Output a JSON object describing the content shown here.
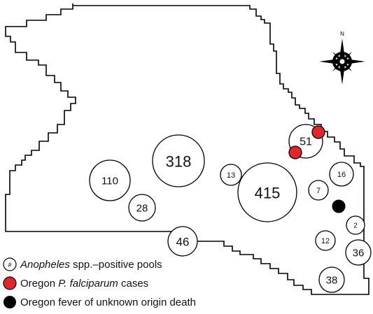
{
  "map": {
    "region_outline": "district-boundary",
    "compass": {
      "icon": "compass-rose-icon",
      "north_label": "N"
    },
    "pools": [
      {
        "id": "pool-318",
        "count": "318"
      },
      {
        "id": "pool-110",
        "count": "110"
      },
      {
        "id": "pool-28",
        "count": "28"
      },
      {
        "id": "pool-13",
        "count": "13"
      },
      {
        "id": "pool-415",
        "count": "415"
      },
      {
        "id": "pool-51",
        "count": "51"
      },
      {
        "id": "pool-16",
        "count": "16"
      },
      {
        "id": "pool-7",
        "count": "7"
      },
      {
        "id": "pool-46",
        "count": "46"
      },
      {
        "id": "pool-2",
        "count": "2"
      },
      {
        "id": "pool-12",
        "count": "12"
      },
      {
        "id": "pool-36",
        "count": "36"
      },
      {
        "id": "pool-38",
        "count": "38"
      }
    ],
    "case_markers": [
      {
        "type": "falciparum-case",
        "color": "#e0262c"
      },
      {
        "type": "falciparum-case",
        "color": "#e0262c"
      },
      {
        "type": "fever-death",
        "color": "#000000"
      }
    ]
  },
  "legend": {
    "pool_symbol": "#",
    "pool_label_italic": "Anopheles",
    "pool_label_rest": " spp.–positive pools",
    "case_label_prefix": "Oregon ",
    "case_label_italic": "P. falciparum",
    "case_label_suffix": " cases",
    "death_label": "Oregon fever of unknown origin death",
    "case_color": "#e0262c",
    "death_color": "#000000"
  }
}
